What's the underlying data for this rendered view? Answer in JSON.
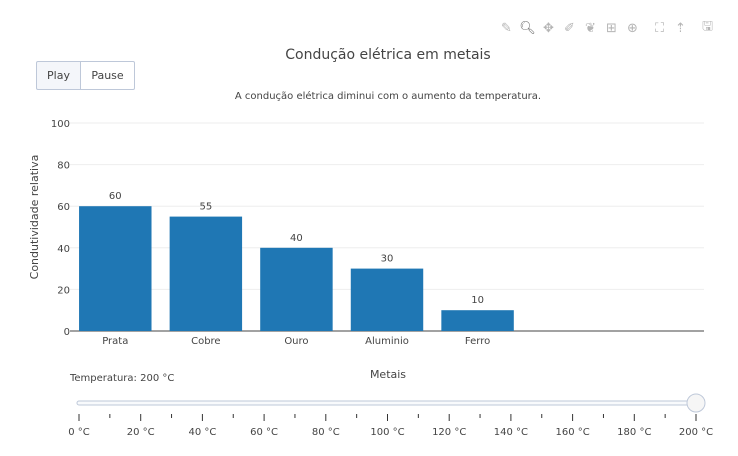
{
  "toolbar": {
    "icons": [
      "pencil-icon",
      "zoom-icon",
      "pan-icon",
      "draw-open-path-icon",
      "draw-closed-path-icon",
      "draw-rect-icon",
      "draw-circle-icon",
      "autoscale-icon",
      "reset-axes-icon",
      "save-icon"
    ]
  },
  "controls": {
    "play_label": "Play",
    "pause_label": "Pause"
  },
  "slider": {
    "current_label": "Temperatura: 200 °C",
    "min": 0,
    "max": 200,
    "value": 200,
    "major_ticks": [
      "0 °C",
      "20 °C",
      "40 °C",
      "60 °C",
      "80 °C",
      "100 °C",
      "120 °C",
      "140 °C",
      "160 °C",
      "180 °C",
      "200 °C"
    ]
  },
  "chart_data": {
    "type": "bar",
    "title": "Condução elétrica em metais",
    "annotation": "A condução elétrica diminui com o aumento da temperatura.",
    "xlabel": "Metais",
    "ylabel": "Condutividade relativa",
    "categories": [
      "Prata",
      "Cobre",
      "Ouro",
      "Aluminio",
      "Ferro"
    ],
    "values": [
      60,
      55,
      40,
      30,
      10
    ],
    "data_labels": [
      "60",
      "55",
      "40",
      "30",
      "10"
    ],
    "ylim": [
      0,
      100
    ],
    "yticks": [
      "0",
      "20",
      "40",
      "60",
      "80",
      "100"
    ],
    "bar_color": "#1f77b4",
    "grid": true
  }
}
